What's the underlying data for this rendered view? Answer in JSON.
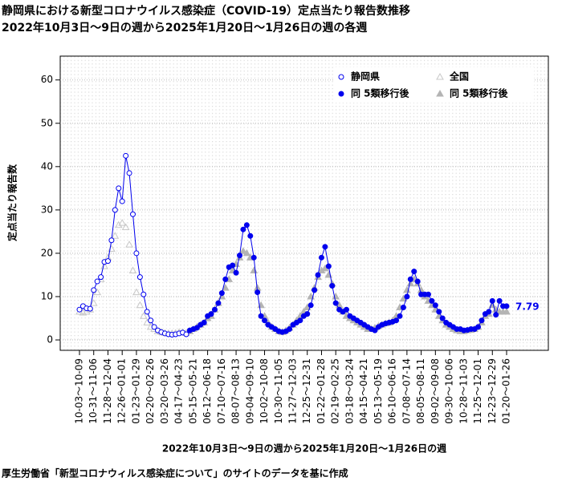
{
  "chart_data": {
    "type": "line",
    "title": "静岡県における新型コロナウイルス感染症（COVID-19）定点当たり報告数推移",
    "subtitle": "2022年10月3日～9日の週から2025年1月20日～1月26日の週の各週",
    "x_label": "2022年10月3日～9日の週から2025年1月20日～1月26日の週",
    "y_label": "定点当たり報告数",
    "source": "厚生労働省「新型コロナウィルス感染症について」のサイトのデータを基に作成",
    "annotation": {
      "text": "7.79",
      "series": 1,
      "index": 120
    },
    "categories": [
      "10-03～10-09",
      null,
      null,
      null,
      "10-31～11-06",
      null,
      null,
      null,
      "11-28～12-04",
      null,
      null,
      null,
      "12-26～01-01",
      null,
      null,
      null,
      "01-23～01-29",
      null,
      null,
      null,
      "02-20～02-26",
      null,
      null,
      null,
      "03-20～03-26",
      null,
      null,
      null,
      "04-17～04-23",
      null,
      null,
      null,
      "05-15～05-21",
      null,
      null,
      null,
      "06-12～06-18",
      null,
      null,
      null,
      "07-10～07-16",
      null,
      null,
      null,
      "08-07～08-13",
      null,
      null,
      null,
      "09-04～09-10",
      null,
      null,
      null,
      "10-02～10-08",
      null,
      null,
      null,
      "10-30～11-05",
      null,
      null,
      null,
      "11-27～12-03",
      null,
      null,
      null,
      "12-25～12-31",
      null,
      null,
      null,
      "01-22～01-28",
      null,
      null,
      null,
      "02-19～02-25",
      null,
      null,
      null,
      "03-18～03-24",
      null,
      null,
      null,
      "04-15～04-21",
      null,
      null,
      null,
      "05-13～05-19",
      null,
      null,
      null,
      "06-10～06-16",
      null,
      null,
      null,
      "07-08～07-14",
      null,
      null,
      null,
      "08-05～08-11",
      null,
      null,
      null,
      "09-02～09-08",
      null,
      null,
      null,
      "09-30～10-06",
      null,
      null,
      null,
      "10-28～11-03",
      null,
      null,
      null,
      "11-25～12-01",
      null,
      null,
      null,
      "12-23～12-29",
      null,
      null,
      null,
      "01-20～01-26"
    ],
    "series": [
      {
        "name": "静岡県",
        "color": "#0000ee",
        "marker": "circle",
        "filled": false,
        "line": true,
        "values": [
          7,
          7.8,
          7.3,
          7.2,
          11.5,
          13.5,
          14.5,
          18,
          18.2,
          23,
          30,
          35,
          32,
          42.5,
          38.5,
          29,
          20,
          14.5,
          10.5,
          6.5,
          4.5,
          3,
          2.2,
          1.8,
          1.5,
          1.3,
          1.2,
          1.3,
          1.5,
          1.7,
          1.3,
          null,
          null,
          null,
          null,
          null,
          null,
          null,
          null,
          null,
          null,
          null,
          null,
          null,
          null,
          null,
          null,
          null,
          null,
          null,
          null,
          null,
          null,
          null,
          null,
          null,
          null,
          null,
          null,
          null,
          null,
          null,
          null,
          null,
          null,
          null,
          null,
          null,
          null,
          null,
          null,
          null,
          null,
          null,
          null,
          null,
          null,
          null,
          null,
          null,
          null,
          null,
          null,
          null,
          null,
          null,
          null,
          null,
          null,
          null,
          null,
          null,
          null,
          null,
          null,
          null,
          null,
          null,
          null,
          null,
          null,
          null,
          null,
          null,
          null,
          null,
          null,
          null,
          null,
          null,
          null,
          null,
          null,
          null,
          null,
          null,
          null,
          null,
          null,
          null,
          null
        ]
      },
      {
        "name": "同 5類移行後",
        "color": "#0000ee",
        "marker": "circle",
        "filled": true,
        "line": true,
        "values": [
          null,
          null,
          null,
          null,
          null,
          null,
          null,
          null,
          null,
          null,
          null,
          null,
          null,
          null,
          null,
          null,
          null,
          null,
          null,
          null,
          null,
          null,
          null,
          null,
          null,
          null,
          null,
          null,
          null,
          null,
          null,
          2.2,
          2.5,
          2.8,
          3.5,
          4,
          5.5,
          6,
          7,
          8.5,
          10.8,
          14,
          16.8,
          17.2,
          15.5,
          19.5,
          25.5,
          26.5,
          24,
          19,
          11,
          5.5,
          4.5,
          3.5,
          3,
          2.5,
          2,
          1.8,
          2,
          2.5,
          3.5,
          4,
          4.5,
          5.5,
          6,
          8,
          11.5,
          15,
          19,
          21.5,
          17,
          12.5,
          8.5,
          7,
          6.5,
          7,
          5.5,
          5,
          4.5,
          4,
          3.5,
          3,
          2.5,
          2.2,
          3,
          3.5,
          3.8,
          4,
          4.2,
          4.5,
          5.5,
          7.5,
          10,
          14,
          15.8,
          13.5,
          10.5,
          10.5,
          10.5,
          9,
          8,
          6.5,
          5,
          4,
          3.5,
          3,
          2.5,
          2.5,
          2.2,
          2.3,
          2.5,
          2.5,
          3,
          4.5,
          6,
          6.5,
          9,
          5.8,
          9,
          7.8,
          7.79
        ]
      },
      {
        "name": "全国",
        "color": "#c8c8c8",
        "marker": "triangle",
        "filled": false,
        "line": false,
        "values": [
          6.5,
          6.3,
          6.5,
          7,
          8.5,
          11,
          14,
          17,
          19,
          21,
          24,
          26.5,
          27,
          26,
          22,
          16,
          11,
          8,
          5.5,
          4,
          3,
          2.5,
          2,
          1.8,
          1.6,
          1.5,
          1.5,
          1.6,
          1.8,
          1.8,
          1.6,
          null,
          null,
          null,
          null,
          null,
          null,
          null,
          null,
          null,
          null,
          null,
          null,
          null,
          null,
          null,
          null,
          null,
          null,
          null,
          null,
          null,
          null,
          null,
          null,
          null,
          null,
          null,
          null,
          null,
          null,
          null,
          null,
          null,
          null,
          null,
          null,
          null,
          null,
          null,
          null,
          null,
          null,
          null,
          null,
          null,
          null,
          null,
          null,
          null,
          null,
          null,
          null,
          null,
          null,
          null,
          null,
          null,
          null,
          null,
          null,
          null,
          null,
          null,
          null,
          null,
          null,
          null,
          null,
          null,
          null,
          null,
          null,
          null,
          null,
          null,
          null,
          null,
          null,
          null,
          null,
          null,
          null,
          null,
          null,
          null,
          null,
          null,
          null,
          null,
          null
        ]
      },
      {
        "name": "同 5類移行後",
        "color": "#b4b4b4",
        "marker": "triangle",
        "filled": true,
        "line": false,
        "values": [
          null,
          null,
          null,
          null,
          null,
          null,
          null,
          null,
          null,
          null,
          null,
          null,
          null,
          null,
          null,
          null,
          null,
          null,
          null,
          null,
          null,
          null,
          null,
          null,
          null,
          null,
          null,
          null,
          null,
          null,
          null,
          2,
          2.5,
          3,
          3.5,
          4,
          5,
          5.5,
          7,
          8.5,
          10,
          12,
          14,
          16,
          17.5,
          19,
          20.5,
          20,
          19,
          16,
          12,
          8,
          5.5,
          4,
          3,
          2.5,
          2,
          1.8,
          2.2,
          2.8,
          3.5,
          4.5,
          5.5,
          6.5,
          7.5,
          10,
          12,
          14.5,
          16,
          16.5,
          15,
          13,
          10,
          8,
          6.5,
          5.5,
          5,
          4.5,
          4,
          3.5,
          3,
          2.5,
          2.5,
          2.8,
          3.2,
          3.5,
          3.8,
          4,
          4.5,
          5.5,
          7.5,
          9.5,
          11.5,
          13,
          14,
          13,
          11.5,
          10,
          9,
          8,
          7,
          5.5,
          4.5,
          3.5,
          3,
          2.5,
          2.2,
          2,
          2,
          2.2,
          2.3,
          2.5,
          3,
          4,
          5.5,
          6,
          8,
          7,
          6.5,
          6.5,
          6.5
        ]
      }
    ],
    "ylim": [
      -2.4,
      65.5
    ],
    "yticks": [
      0,
      10,
      20,
      30,
      40,
      50,
      60
    ],
    "grid": true,
    "legend": "top-right"
  }
}
